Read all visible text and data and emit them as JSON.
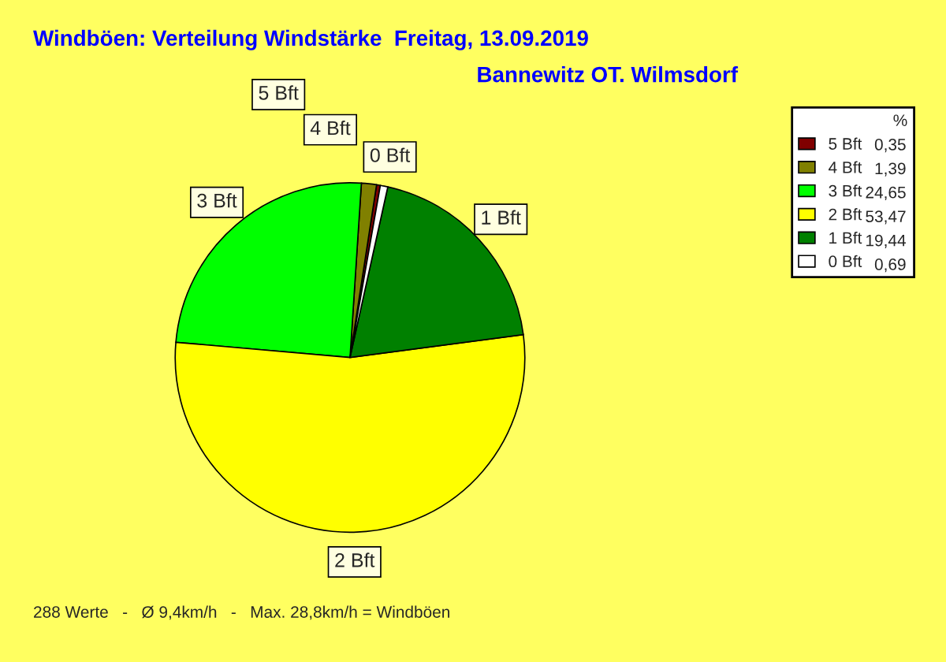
{
  "chart_data": {
    "type": "pie",
    "title": "Windböen: Verteilung Windstärke  Freitag, 13.09.2019",
    "subtitle": "Bannewitz OT. Wilmsdorf",
    "categories": [
      "5 Bft",
      "4 Bft",
      "3 Bft",
      "2 Bft",
      "1 Bft",
      "0 Bft"
    ],
    "values": [
      0.35,
      1.39,
      24.65,
      53.47,
      19.44,
      0.69
    ],
    "value_labels": [
      "0,35",
      "1,39",
      "24,65",
      "53,47",
      "19,44",
      "0,69"
    ],
    "colors": [
      "#800000",
      "#808000",
      "#00ff00",
      "#ffff00",
      "#008000",
      "#ffffff"
    ],
    "legend": "right",
    "legend_title": "%",
    "annotations": [
      "288 Werte   -   Ø 9,4km/h   -   Max. 28,8km/h = Windböen"
    ]
  }
}
